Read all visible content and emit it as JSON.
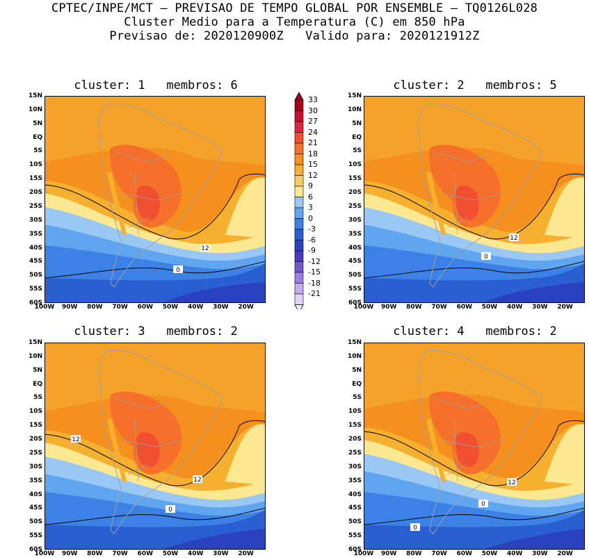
{
  "header": {
    "line1": "CPTEC/INPE/MCT – PREVISAO DE TEMPO GLOBAL POR ENSEMBLE – TQ0126L028",
    "line2": "Cluster Medio para a Temperatura (C) em 850 hPa",
    "line3": "Previsao de: 2020120900Z   Valido para: 2020121912Z"
  },
  "axes": {
    "lat_labels": [
      "15N",
      "10N",
      "5N",
      "EQ",
      "5S",
      "10S",
      "15S",
      "20S",
      "25S",
      "30S",
      "35S",
      "40S",
      "45S",
      "50S",
      "55S",
      "60S"
    ],
    "lon_labels": [
      "100W",
      "90W",
      "80W",
      "70W",
      "60W",
      "50W",
      "40W",
      "30W",
      "20W"
    ]
  },
  "colorbar": {
    "labels": [
      "33",
      "30",
      "27",
      "24",
      "21",
      "18",
      "15",
      "12",
      "9",
      "6",
      "3",
      "0",
      "-3",
      "-6",
      "-9",
      "-12",
      "-15",
      "-18",
      "-21"
    ],
    "colors": [
      "#a6001b",
      "#c8102e",
      "#e0263c",
      "#f05030",
      "#f5702a",
      "#f5901e",
      "#f5b030",
      "#f5d060",
      "#fbe890",
      "#9ac8f5",
      "#5fa5ef",
      "#3c82e6",
      "#2a5fd2",
      "#2a42c0",
      "#4a3cc0",
      "#7258d0",
      "#9a80e0",
      "#c2acec",
      "#e0d4f6"
    ]
  },
  "chart_data": {
    "type": "heatmap",
    "variable": "Temperatura (C) em 850 hPa",
    "region": {
      "lat_range": [
        -60,
        15
      ],
      "lon_range": [
        -100,
        -12
      ]
    },
    "panels": [
      {
        "title": "cluster: 1   membros: 6",
        "cluster": 1,
        "membros": 6,
        "contour_labels": [
          "12",
          "0"
        ]
      },
      {
        "title": "cluster: 2   membros: 5",
        "cluster": 2,
        "membros": 5,
        "contour_labels": [
          "12",
          "0"
        ]
      },
      {
        "title": "cluster: 3   membros: 2",
        "cluster": 3,
        "membros": 2,
        "contour_labels": [
          "12",
          "12",
          "0"
        ]
      },
      {
        "title": "cluster: 4   membros: 2",
        "cluster": 4,
        "membros": 2,
        "contour_labels": [
          "12",
          "0",
          "0"
        ]
      }
    ]
  }
}
